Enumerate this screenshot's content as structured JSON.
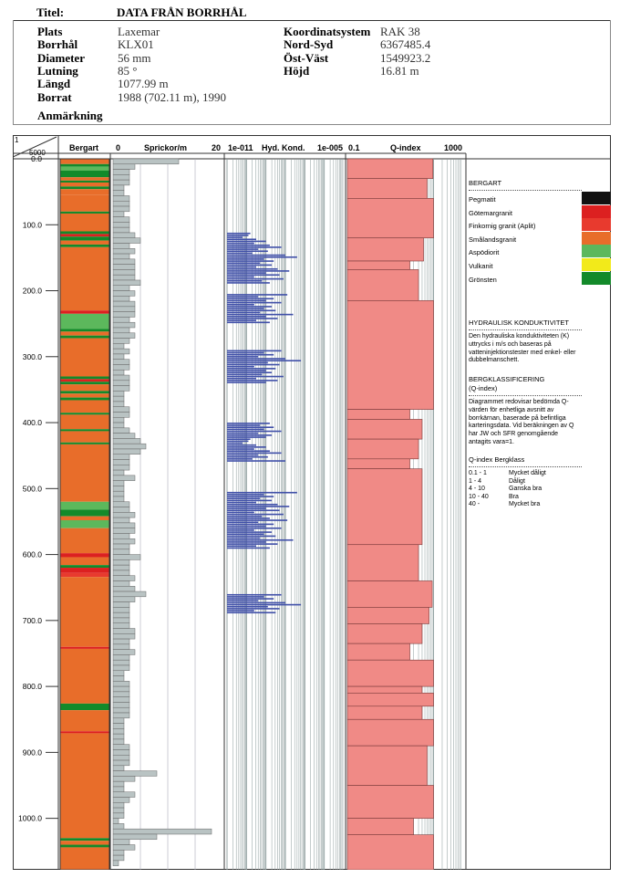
{
  "header": {
    "title_label": "Titel:",
    "title_value": "DATA FRÅN BORRHÅL",
    "fields_left": [
      {
        "label": "Plats",
        "value": "Laxemar"
      },
      {
        "label": "Borrhål",
        "value": "KLX01"
      },
      {
        "label": "Diameter",
        "value": "56 mm"
      },
      {
        "label": "Lutning",
        "value": "85 °"
      },
      {
        "label": "Längd",
        "value": "1077.99 m"
      },
      {
        "label": "Borrat",
        "value": "1988 (702.11 m), 1990"
      }
    ],
    "fields_right": [
      {
        "label": "Koordinatsystem",
        "value": "RAK 38"
      },
      {
        "label": "Nord-Syd",
        "value": "6367485.4"
      },
      {
        "label": "Öst-Väst",
        "value": "1549923.2"
      },
      {
        "label": "Höjd",
        "value": "16.81 m"
      }
    ],
    "remark_label": "Anmärkning"
  },
  "chart_data": {
    "type": "well-log",
    "scale_label_1": "1",
    "scale_label_2": "5000",
    "depth_axis": {
      "min": 0,
      "max": 1078,
      "ticks": [
        "0.0",
        "100.0",
        "200.0",
        "300.0",
        "400.0",
        "500.0",
        "600.0",
        "700.0",
        "800.0",
        "900.0",
        "1000.0"
      ],
      "tick_values": [
        0,
        100,
        200,
        300,
        400,
        500,
        600,
        700,
        800,
        900,
        1000
      ]
    },
    "columns": {
      "bergart": {
        "label": "Bergart"
      },
      "sprickor": {
        "label": "Sprickor/m",
        "min_label": "0",
        "max_label": "20",
        "max": 20
      },
      "hydk": {
        "label": "Hyd. Kond.",
        "min_label": "1e-011",
        "max_label": "1e-005"
      },
      "qindex": {
        "label": "Q-index",
        "min_label": "0.1",
        "max_label": "1000"
      }
    },
    "bergart_intervals": [
      {
        "from": 0,
        "to": 8,
        "rock": "Smålandsgranit"
      },
      {
        "from": 8,
        "to": 12,
        "rock": "Grönsten"
      },
      {
        "from": 12,
        "to": 18,
        "rock": "Aspödiorit"
      },
      {
        "from": 18,
        "to": 28,
        "rock": "Grönsten"
      },
      {
        "from": 28,
        "to": 33,
        "rock": "Smålandsgranit"
      },
      {
        "from": 33,
        "to": 36,
        "rock": "Grönsten"
      },
      {
        "from": 36,
        "to": 42,
        "rock": "Smålandsgranit"
      },
      {
        "from": 42,
        "to": 46,
        "rock": "Grönsten"
      },
      {
        "from": 46,
        "to": 55,
        "rock": "Smålandsgranit"
      },
      {
        "from": 55,
        "to": 80,
        "rock": "Smålandsgranit"
      },
      {
        "from": 80,
        "to": 83,
        "rock": "Grönsten"
      },
      {
        "from": 83,
        "to": 110,
        "rock": "Smålandsgranit"
      },
      {
        "from": 110,
        "to": 114,
        "rock": "Grönsten"
      },
      {
        "from": 114,
        "to": 118,
        "rock": "Götemargranit"
      },
      {
        "from": 118,
        "to": 124,
        "rock": "Grönsten"
      },
      {
        "from": 124,
        "to": 130,
        "rock": "Smålandsgranit"
      },
      {
        "from": 130,
        "to": 134,
        "rock": "Grönsten"
      },
      {
        "from": 134,
        "to": 230,
        "rock": "Smålandsgranit"
      },
      {
        "from": 230,
        "to": 235,
        "rock": "Götemargranit"
      },
      {
        "from": 235,
        "to": 258,
        "rock": "Aspödiorit"
      },
      {
        "from": 258,
        "to": 262,
        "rock": "Grönsten"
      },
      {
        "from": 262,
        "to": 268,
        "rock": "Smålandsgranit"
      },
      {
        "from": 268,
        "to": 272,
        "rock": "Grönsten"
      },
      {
        "from": 272,
        "to": 330,
        "rock": "Smålandsgranit"
      },
      {
        "from": 330,
        "to": 334,
        "rock": "Grönsten"
      },
      {
        "from": 334,
        "to": 338,
        "rock": "Götemargranit"
      },
      {
        "from": 338,
        "to": 342,
        "rock": "Grönsten"
      },
      {
        "from": 342,
        "to": 352,
        "rock": "Smålandsgranit"
      },
      {
        "from": 352,
        "to": 356,
        "rock": "Grönsten"
      },
      {
        "from": 356,
        "to": 362,
        "rock": "Smålandsgranit"
      },
      {
        "from": 362,
        "to": 366,
        "rock": "Grönsten"
      },
      {
        "from": 366,
        "to": 385,
        "rock": "Smålandsgranit"
      },
      {
        "from": 385,
        "to": 388,
        "rock": "Grönsten"
      },
      {
        "from": 388,
        "to": 410,
        "rock": "Smålandsgranit"
      },
      {
        "from": 410,
        "to": 413,
        "rock": "Grönsten"
      },
      {
        "from": 413,
        "to": 430,
        "rock": "Smålandsgranit"
      },
      {
        "from": 430,
        "to": 433,
        "rock": "Grönsten"
      },
      {
        "from": 433,
        "to": 520,
        "rock": "Smålandsgranit"
      },
      {
        "from": 520,
        "to": 532,
        "rock": "Aspödiorit"
      },
      {
        "from": 532,
        "to": 542,
        "rock": "Grönsten"
      },
      {
        "from": 542,
        "to": 548,
        "rock": "Smålandsgranit"
      },
      {
        "from": 548,
        "to": 560,
        "rock": "Aspödiorit"
      },
      {
        "from": 560,
        "to": 598,
        "rock": "Smålandsgranit"
      },
      {
        "from": 598,
        "to": 604,
        "rock": "Götemargranit"
      },
      {
        "from": 604,
        "to": 616,
        "rock": "Smålandsgranit"
      },
      {
        "from": 616,
        "to": 620,
        "rock": "Grönsten"
      },
      {
        "from": 620,
        "to": 628,
        "rock": "Götemargranit"
      },
      {
        "from": 628,
        "to": 634,
        "rock": "Finkornig granit (Aplit)"
      },
      {
        "from": 634,
        "to": 740,
        "rock": "Smålandsgranit"
      },
      {
        "from": 740,
        "to": 743,
        "rock": "Götemargranit"
      },
      {
        "from": 743,
        "to": 826,
        "rock": "Smålandsgranit"
      },
      {
        "from": 826,
        "to": 836,
        "rock": "Grönsten"
      },
      {
        "from": 836,
        "to": 868,
        "rock": "Smålandsgranit"
      },
      {
        "from": 868,
        "to": 871,
        "rock": "Götemargranit"
      },
      {
        "from": 871,
        "to": 1030,
        "rock": "Smålandsgranit"
      },
      {
        "from": 1030,
        "to": 1034,
        "rock": "Grönsten"
      },
      {
        "from": 1034,
        "to": 1040,
        "rock": "Smålandsgranit"
      },
      {
        "from": 1040,
        "to": 1044,
        "rock": "Grönsten"
      },
      {
        "from": 1044,
        "to": 1078,
        "rock": "Smålandsgranit"
      }
    ],
    "fracture_interval_m": 8,
    "fractures_per_m": [
      12,
      4,
      3,
      3,
      3,
      2,
      2,
      3,
      3,
      3,
      2,
      3,
      3,
      3,
      4,
      5,
      3,
      4,
      3,
      4,
      4,
      4,
      4,
      5,
      3,
      4,
      3,
      4,
      4,
      4,
      3,
      4,
      3,
      4,
      3,
      2,
      3,
      2,
      3,
      3,
      2,
      3,
      3,
      3,
      2,
      2,
      2,
      3,
      3,
      2,
      2,
      3,
      4,
      5,
      6,
      5,
      3,
      3,
      3,
      2,
      4,
      2,
      2,
      2,
      2,
      3,
      3,
      4,
      3,
      4,
      4,
      3,
      4,
      3,
      3,
      5,
      3,
      3,
      3,
      4,
      3,
      4,
      6,
      4,
      3,
      3,
      3,
      3,
      3,
      4,
      4,
      3,
      3,
      4,
      3,
      3,
      3,
      2,
      2,
      3,
      3,
      3,
      3,
      3,
      3,
      3,
      2,
      2,
      2,
      2,
      2,
      3,
      3,
      3,
      3,
      2,
      8,
      4,
      2,
      2,
      4,
      3,
      2,
      2,
      2,
      1,
      2,
      18,
      8,
      3,
      4,
      2,
      2,
      1,
      0
    ],
    "conductivity_segments": [
      {
        "from": 112,
        "to": 190,
        "note": "dense"
      },
      {
        "from": 205,
        "to": 250,
        "note": "dense"
      },
      {
        "from": 290,
        "to": 340,
        "note": "dense"
      },
      {
        "from": 400,
        "to": 460,
        "note": "dense"
      },
      {
        "from": 505,
        "to": 590,
        "note": "dense"
      },
      {
        "from": 660,
        "to": 690,
        "note": "dense"
      }
    ],
    "conductivity_log10": [
      -9.8,
      -9.9,
      -10.2,
      -9.5,
      -9.0,
      -9.6,
      -8.8,
      -8.2,
      -9.4,
      -8.9,
      -9.7,
      -8.0,
      -7.4,
      -9.1,
      -8.6,
      -9.3,
      -8.7,
      -9.5,
      -8.4,
      -7.8,
      -9.0,
      -8.3,
      -9.6,
      -8.1,
      -9.2,
      -8.8,
      -7.9,
      -9.4,
      -8.6,
      -9.0,
      -8.2,
      -9.6,
      -8.7,
      -9.1,
      -8.5,
      -9.3,
      -7.6,
      -9.0,
      -8.4,
      -9.5,
      -8.8,
      -8.2,
      -9.1,
      -8.6,
      -9.4,
      -8.0,
      -7.2,
      -8.9,
      -8.3,
      -9.6,
      -8.5,
      -9.0,
      -8.7,
      -9.2,
      -8.1,
      -9.5,
      -8.4,
      -9.0,
      -8.8,
      -9.3,
      -8.6,
      -9.1,
      -8.2,
      -9.4,
      -8.7,
      -9.0
    ],
    "q_index_intervals": [
      {
        "from": 0,
        "to": 30,
        "q": 95
      },
      {
        "from": 30,
        "to": 60,
        "q": 60
      },
      {
        "from": 60,
        "to": 120,
        "q": 100
      },
      {
        "from": 120,
        "to": 155,
        "q": 45
      },
      {
        "from": 155,
        "to": 168,
        "q": 15
      },
      {
        "from": 168,
        "to": 215,
        "q": 30
      },
      {
        "from": 215,
        "to": 380,
        "q": 100
      },
      {
        "from": 380,
        "to": 395,
        "q": 15
      },
      {
        "from": 395,
        "to": 425,
        "q": 40
      },
      {
        "from": 425,
        "to": 455,
        "q": 30
      },
      {
        "from": 455,
        "to": 470,
        "q": 15
      },
      {
        "from": 470,
        "to": 585,
        "q": 40
      },
      {
        "from": 585,
        "to": 640,
        "q": 30
      },
      {
        "from": 640,
        "to": 680,
        "q": 90
      },
      {
        "from": 680,
        "to": 705,
        "q": 70
      },
      {
        "from": 705,
        "to": 735,
        "q": 40
      },
      {
        "from": 735,
        "to": 760,
        "q": 15
      },
      {
        "from": 760,
        "to": 800,
        "q": 100
      },
      {
        "from": 800,
        "to": 810,
        "q": 40
      },
      {
        "from": 810,
        "to": 830,
        "q": 100
      },
      {
        "from": 830,
        "to": 850,
        "q": 40
      },
      {
        "from": 850,
        "to": 890,
        "q": 100
      },
      {
        "from": 890,
        "to": 950,
        "q": 60
      },
      {
        "from": 950,
        "to": 1000,
        "q": 100
      },
      {
        "from": 1000,
        "to": 1025,
        "q": 20
      },
      {
        "from": 1025,
        "to": 1078,
        "q": 100
      }
    ]
  },
  "legend": {
    "bergart_title": "BERGART",
    "rock_types": [
      {
        "name": "Pegmatit",
        "color": "#111111"
      },
      {
        "name": "Götemargranit",
        "color": "#dc2020"
      },
      {
        "name": "Finkornig granit (Aplit)",
        "color": "#e83a2e"
      },
      {
        "name": "Smålandsgranit",
        "color": "#e86d2a"
      },
      {
        "name": "Aspödiorit",
        "color": "#5cb85c"
      },
      {
        "name": "Vulkanit",
        "color": "#f2ea1a"
      },
      {
        "name": "Grönsten",
        "color": "#138a2a"
      }
    ],
    "hydraulic_title": "HYDRAULISK KONDUKTIVITET",
    "hydraulic_text": "Den hydrauliska konduktiviteten (K) uttrycks i m/s och baseras på vatteninjektionstester med enkel- eller dubbelmanschett.",
    "berg_title": "BERGKLASSIFICERING",
    "berg_subtitle": "(Q-index)",
    "berg_text": "Diagrammet redovisar bedömda Q-värden för enhetliga avsnitt av borrkärnan, baserade på befintliga karteringsdata. Vid beräkningen av Q har JW och SFR genomgående antagits vara=1.",
    "q_header": "Q-index  Bergklass",
    "q_classes": [
      {
        "range": "0.1 - 1",
        "cls": "Mycket dåligt"
      },
      {
        "range": "1    - 4",
        "cls": "Dåligt"
      },
      {
        "range": "4    - 10",
        "cls": "Ganska bra"
      },
      {
        "range": "10  - 40",
        "cls": "Bra"
      },
      {
        "range": "40  -",
        "cls": "Mycket bra"
      }
    ]
  },
  "colors": {
    "fracture_fill": "#b9c3c3",
    "conductivity_bar": "#3f4fa8",
    "q_fill": "#f08a86",
    "grid_line": "#8a9a9a"
  }
}
